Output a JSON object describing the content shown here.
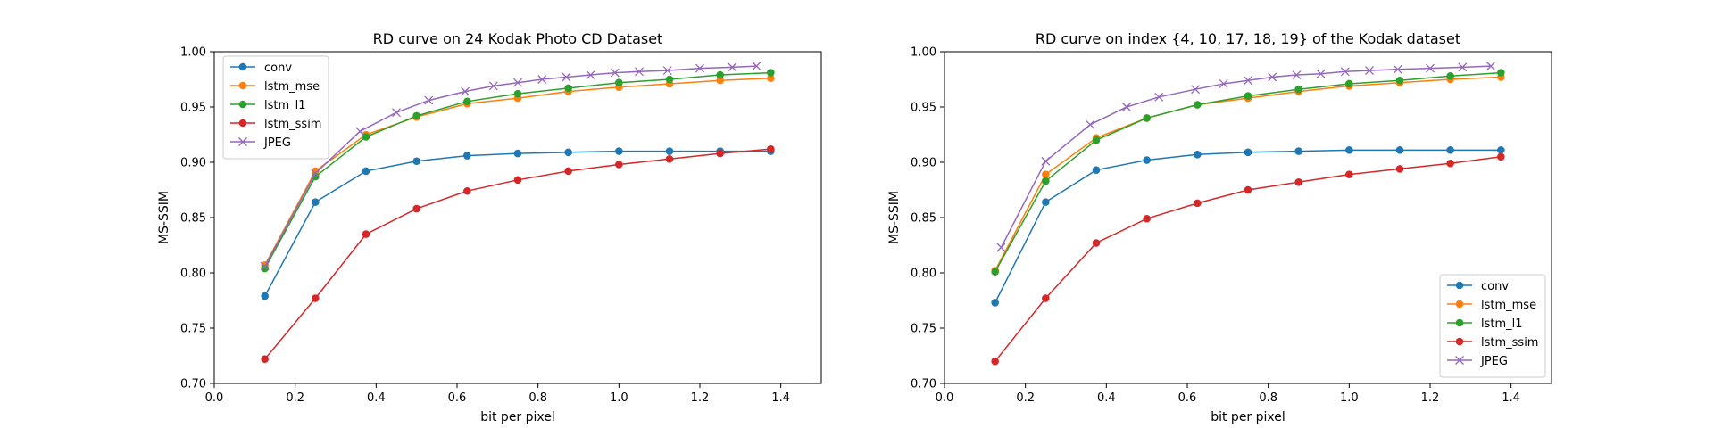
{
  "chart_data": [
    {
      "type": "line",
      "title": "RD curve on 24 Kodak Photo CD Dataset",
      "xlabel": "bit per pixel",
      "ylabel": "MS-SSIM",
      "xlim": [
        0.0,
        1.5
      ],
      "ylim": [
        0.7,
        1.0
      ],
      "xticks": [
        "0.0",
        "0.2",
        "0.4",
        "0.6",
        "0.8",
        "1.0",
        "1.2",
        "1.4"
      ],
      "yticks": [
        "0.70",
        "0.75",
        "0.80",
        "0.85",
        "0.90",
        "0.95",
        "1.00"
      ],
      "grid": false,
      "legend": "top-left",
      "series": [
        {
          "name": "conv",
          "color": "#1f77b4",
          "marker": "circle",
          "x": [
            0.125,
            0.25,
            0.375,
            0.5,
            0.625,
            0.75,
            0.875,
            1.0,
            1.125,
            1.25,
            1.375
          ],
          "y": [
            0.779,
            0.864,
            0.892,
            0.901,
            0.906,
            0.908,
            0.909,
            0.91,
            0.91,
            0.91,
            0.91
          ]
        },
        {
          "name": "lstm_mse",
          "color": "#ff7f0e",
          "marker": "circle",
          "x": [
            0.125,
            0.25,
            0.375,
            0.5,
            0.625,
            0.75,
            0.875,
            1.0,
            1.125,
            1.25,
            1.375
          ],
          "y": [
            0.807,
            0.892,
            0.925,
            0.941,
            0.953,
            0.958,
            0.964,
            0.968,
            0.971,
            0.974,
            0.976
          ]
        },
        {
          "name": "lstm_l1",
          "color": "#2ca02c",
          "marker": "circle",
          "x": [
            0.125,
            0.25,
            0.375,
            0.5,
            0.625,
            0.75,
            0.875,
            1.0,
            1.125,
            1.25,
            1.375
          ],
          "y": [
            0.804,
            0.887,
            0.923,
            0.942,
            0.955,
            0.962,
            0.967,
            0.972,
            0.975,
            0.979,
            0.981
          ]
        },
        {
          "name": "lstm_ssim",
          "color": "#d62728",
          "marker": "circle",
          "x": [
            0.125,
            0.25,
            0.375,
            0.5,
            0.625,
            0.75,
            0.875,
            1.0,
            1.125,
            1.25,
            1.375
          ],
          "y": [
            0.722,
            0.777,
            0.835,
            0.858,
            0.874,
            0.884,
            0.892,
            0.898,
            0.903,
            0.908,
            0.912
          ]
        },
        {
          "name": "JPEG",
          "color": "#9467bd",
          "marker": "x",
          "x": [
            0.125,
            0.25,
            0.36,
            0.45,
            0.53,
            0.62,
            0.69,
            0.75,
            0.81,
            0.87,
            0.93,
            0.99,
            1.05,
            1.12,
            1.2,
            1.28,
            1.34
          ],
          "y": [
            0.806,
            0.89,
            0.928,
            0.945,
            0.956,
            0.964,
            0.969,
            0.972,
            0.975,
            0.977,
            0.979,
            0.981,
            0.982,
            0.983,
            0.985,
            0.986,
            0.987
          ]
        }
      ]
    },
    {
      "type": "line",
      "title": "RD curve on index {4, 10, 17, 18, 19} of the Kodak dataset",
      "xlabel": "bit per pixel",
      "ylabel": "MS-SSIM",
      "xlim": [
        0.0,
        1.5
      ],
      "ylim": [
        0.7,
        1.0
      ],
      "xticks": [
        "0.0",
        "0.2",
        "0.4",
        "0.6",
        "0.8",
        "1.0",
        "1.2",
        "1.4"
      ],
      "yticks": [
        "0.70",
        "0.75",
        "0.80",
        "0.85",
        "0.90",
        "0.95",
        "1.00"
      ],
      "grid": false,
      "legend": "bottom-right",
      "series": [
        {
          "name": "conv",
          "color": "#1f77b4",
          "marker": "circle",
          "x": [
            0.125,
            0.25,
            0.375,
            0.5,
            0.625,
            0.75,
            0.875,
            1.0,
            1.125,
            1.25,
            1.375
          ],
          "y": [
            0.773,
            0.864,
            0.893,
            0.902,
            0.907,
            0.909,
            0.91,
            0.911,
            0.911,
            0.911,
            0.911
          ]
        },
        {
          "name": "lstm_mse",
          "color": "#ff7f0e",
          "marker": "circle",
          "x": [
            0.125,
            0.25,
            0.375,
            0.5,
            0.625,
            0.75,
            0.875,
            1.0,
            1.125,
            1.25,
            1.375
          ],
          "y": [
            0.802,
            0.889,
            0.922,
            0.94,
            0.952,
            0.958,
            0.964,
            0.969,
            0.972,
            0.975,
            0.977
          ]
        },
        {
          "name": "lstm_l1",
          "color": "#2ca02c",
          "marker": "circle",
          "x": [
            0.125,
            0.25,
            0.375,
            0.5,
            0.625,
            0.75,
            0.875,
            1.0,
            1.125,
            1.25,
            1.375
          ],
          "y": [
            0.801,
            0.883,
            0.92,
            0.94,
            0.952,
            0.96,
            0.966,
            0.971,
            0.974,
            0.978,
            0.981
          ]
        },
        {
          "name": "lstm_ssim",
          "color": "#d62728",
          "marker": "circle",
          "x": [
            0.125,
            0.25,
            0.375,
            0.5,
            0.625,
            0.75,
            0.875,
            1.0,
            1.125,
            1.25,
            1.375
          ],
          "y": [
            0.72,
            0.777,
            0.827,
            0.849,
            0.863,
            0.875,
            0.882,
            0.889,
            0.894,
            0.899,
            0.905
          ]
        },
        {
          "name": "JPEG",
          "color": "#9467bd",
          "marker": "x",
          "x": [
            0.14,
            0.25,
            0.36,
            0.45,
            0.53,
            0.62,
            0.69,
            0.75,
            0.81,
            0.87,
            0.93,
            0.99,
            1.05,
            1.12,
            1.2,
            1.28,
            1.35
          ],
          "y": [
            0.823,
            0.901,
            0.934,
            0.95,
            0.959,
            0.966,
            0.971,
            0.974,
            0.977,
            0.979,
            0.98,
            0.982,
            0.983,
            0.984,
            0.985,
            0.986,
            0.987
          ]
        }
      ]
    }
  ]
}
